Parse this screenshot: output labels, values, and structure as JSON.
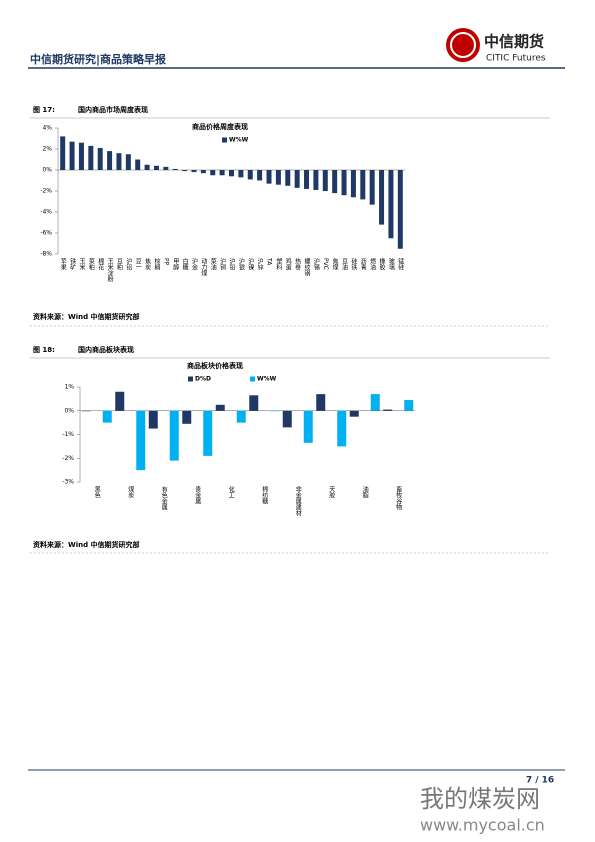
{
  "header": {
    "title": "中信期货研究|商品策略早报",
    "logo_cn": "中信期货",
    "logo_en": "CITIC Futures"
  },
  "figures": [
    {
      "label": "图 17:",
      "caption": "国内商品市场周度表现",
      "source": "资料来源：Wind  中信期货研究部"
    },
    {
      "label": "图 18:",
      "caption": "国内商品板块表现",
      "source": "资料来源：Wind  中信期货研究部"
    }
  ],
  "chart_data": [
    {
      "type": "bar",
      "title": "商品价格周度表现",
      "categories": [
        "苹果",
        "铁矿",
        "玉米",
        "菜粕",
        "棉花",
        "玉米淀粉",
        "豆粕",
        "沪铝",
        "豆一",
        "焦炭",
        "棕榈",
        "PP",
        "甲醇",
        "白糖",
        "沪金",
        "动力煤",
        "菜油",
        "沪铜",
        "沪铅",
        "沪银",
        "沪镍",
        "沪锌",
        "TA",
        "塑料",
        "鸡蛋",
        "热卷",
        "螺纹钢",
        "沪锡",
        "PVC",
        "焦煤",
        "豆油",
        "硅铁",
        "沥青",
        "燃油",
        "橡胶",
        "玻璃",
        "锰硅"
      ],
      "series": [
        {
          "name": "W%W",
          "color": "#1f3864",
          "values": [
            3.2,
            2.7,
            2.6,
            2.3,
            2.1,
            1.8,
            1.6,
            1.5,
            1.0,
            0.5,
            0.4,
            0.3,
            0.1,
            -0.1,
            -0.2,
            -0.3,
            -0.5,
            -0.5,
            -0.6,
            -0.7,
            -0.9,
            -1.0,
            -1.3,
            -1.4,
            -1.5,
            -1.7,
            -1.8,
            -1.9,
            -2.0,
            -2.2,
            -2.4,
            -2.6,
            -2.8,
            -3.3,
            -5.2,
            -6.5,
            -7.5
          ]
        }
      ],
      "ylim": [
        -8,
        4
      ],
      "yticks": [
        {
          "value": 4,
          "label": "4%"
        },
        {
          "value": 2,
          "label": "2%"
        },
        {
          "value": 0,
          "label": "0%"
        },
        {
          "value": -2,
          "label": "-2%"
        },
        {
          "value": -4,
          "label": "-4%"
        },
        {
          "value": -6,
          "label": "-6%"
        },
        {
          "value": -8,
          "label": "-8%"
        }
      ]
    },
    {
      "type": "bar",
      "title": "商品板块价格表现",
      "categories": [
        "黑色",
        "煤炭",
        "有色金属",
        "贵金属",
        "化工",
        "棉纺糖",
        "非金属建材",
        "天胶",
        "油脂",
        "畜牧谷物"
      ],
      "series": [
        {
          "name": "D%D",
          "color": "#1f3864",
          "values": [
            0.0,
            0.8,
            -0.75,
            -0.55,
            0.25,
            0.65,
            -0.7,
            0.7,
            -0.25,
            0.05
          ]
        },
        {
          "name": "W%W",
          "color": "#00b0f0",
          "values": [
            -0.5,
            -2.5,
            -2.1,
            -1.9,
            -0.5,
            0.0,
            -1.35,
            -1.5,
            0.7,
            0.45
          ]
        }
      ],
      "ylim": [
        -3,
        1
      ],
      "yticks": [
        {
          "value": 1,
          "label": "1%"
        },
        {
          "value": 0,
          "label": "0%"
        },
        {
          "value": -1,
          "label": "-1%"
        },
        {
          "value": -2,
          "label": "-2%"
        },
        {
          "value": -3,
          "label": "-3%"
        }
      ]
    }
  ],
  "footer": {
    "page": "7 / 16"
  },
  "watermark": {
    "name": "我的煤炭网",
    "url": "www.mycoal.cn"
  }
}
